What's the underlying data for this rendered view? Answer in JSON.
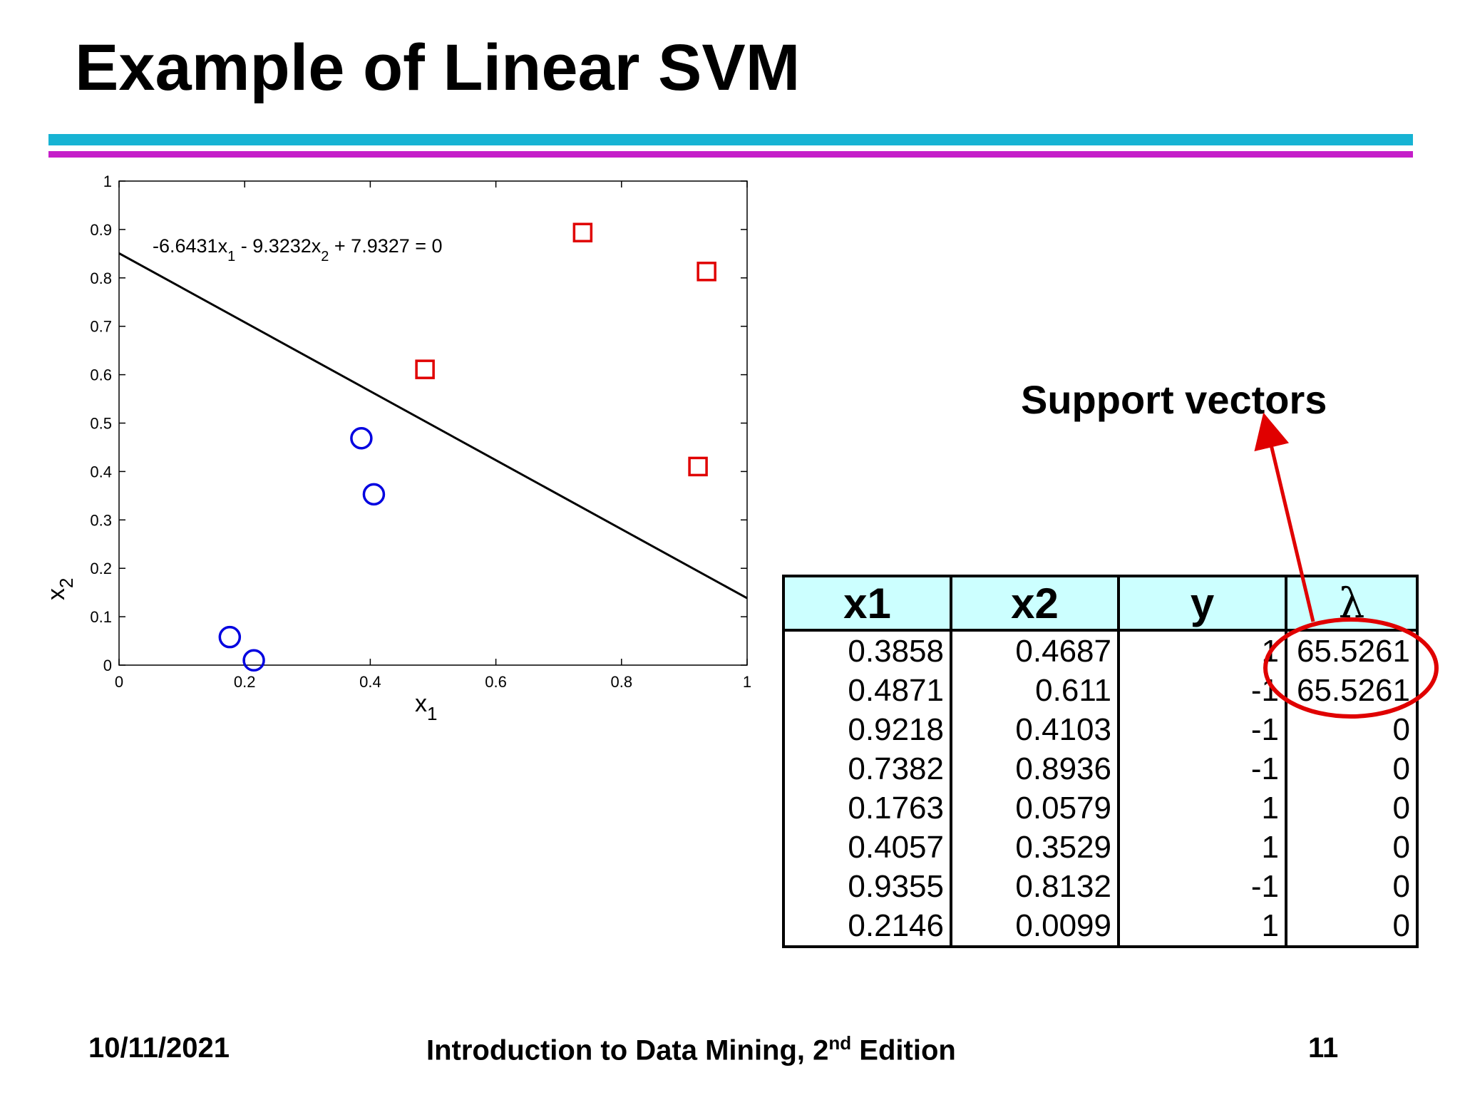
{
  "slide": {
    "title": "Example of Linear SVM",
    "support_vectors_label": "Support vectors",
    "footer": {
      "date": "10/11/2021",
      "book_prefix": "Introduction to Data Mining, 2",
      "book_sup": "nd",
      "book_suffix": " Edition",
      "page": "11"
    },
    "colors": {
      "title_bar_cyan": "#17b3d3",
      "title_bar_magenta": "#c51ec9",
      "square_marker": "#e00000",
      "circle_marker": "#0000e0",
      "table_header_bg": "#ccffff",
      "annotation_red": "#e00000"
    }
  },
  "chart_data": {
    "type": "scatter",
    "xlabel": "x",
    "xlabel_sub": "1",
    "ylabel": "x",
    "ylabel_sub": "2",
    "xlim": [
      0,
      1
    ],
    "ylim": [
      0,
      1
    ],
    "xticks": [
      "0",
      "0.2",
      "0.4",
      "0.6",
      "0.8",
      "1"
    ],
    "yticks": [
      "0",
      "0.1",
      "0.2",
      "0.3",
      "0.4",
      "0.5",
      "0.6",
      "0.7",
      "0.8",
      "0.9",
      "1"
    ],
    "grid": false,
    "equation": {
      "parts": [
        "-6.6431x",
        "1",
        " - 9.3232x",
        "2",
        " + 7.9327 = 0"
      ]
    },
    "decision_boundary": {
      "w1": -6.6431,
      "w2": -9.3232,
      "b": 7.9327
    },
    "series": [
      {
        "marker": "square",
        "color": "#e00000",
        "points": [
          [
            0.4871,
            0.611
          ],
          [
            0.9218,
            0.4103
          ],
          [
            0.7382,
            0.8936
          ],
          [
            0.9355,
            0.8132
          ]
        ]
      },
      {
        "marker": "circle",
        "color": "#0000e0",
        "points": [
          [
            0.3858,
            0.4687
          ],
          [
            0.1763,
            0.0579
          ],
          [
            0.4057,
            0.3529
          ],
          [
            0.2146,
            0.0099
          ]
        ]
      }
    ]
  },
  "table": {
    "headers": [
      "x1",
      "x2",
      "y",
      "λ"
    ],
    "rows": [
      [
        "0.3858",
        "0.4687",
        "1",
        "65.5261"
      ],
      [
        "0.4871",
        "0.611",
        "-1",
        "65.5261"
      ],
      [
        "0.9218",
        "0.4103",
        "-1",
        "0"
      ],
      [
        "0.7382",
        "0.8936",
        "-1",
        "0"
      ],
      [
        "0.1763",
        "0.0579",
        "1",
        "0"
      ],
      [
        "0.4057",
        "0.3529",
        "1",
        "0"
      ],
      [
        "0.9355",
        "0.8132",
        "-1",
        "0"
      ],
      [
        "0.2146",
        "0.0099",
        "1",
        "0"
      ]
    ]
  }
}
